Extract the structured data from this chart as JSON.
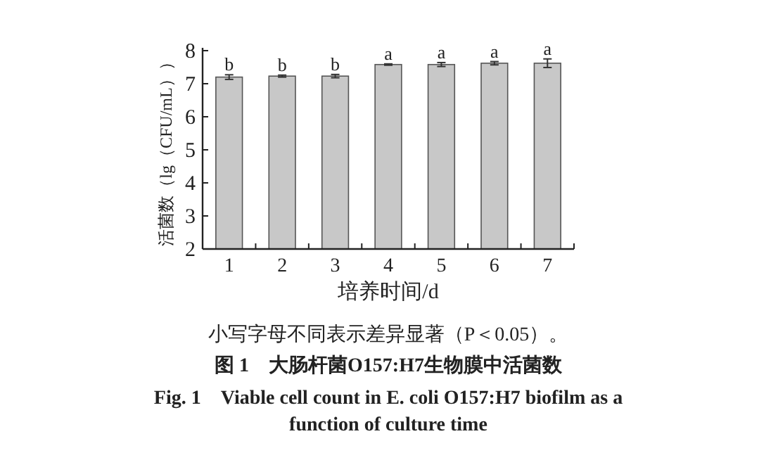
{
  "chart_data": {
    "type": "bar",
    "title": "图 1　大肠杆菌O157:H7生物膜中活菌数",
    "subtitle": "Fig. 1　Viable cell count in E. coli O157:H7 biofilm as a function of culture time",
    "xlabel": "培养时间/d",
    "ylabel": "活菌数（lg（CFU/mL））",
    "categories": [
      "1",
      "2",
      "3",
      "4",
      "5",
      "6",
      "7"
    ],
    "series": [
      {
        "color": "#c8c8c8",
        "values": [
          7.2,
          7.23,
          7.23,
          7.58,
          7.58,
          7.62,
          7.62
        ],
        "errors": [
          0.07,
          0.03,
          0.05,
          0.02,
          0.06,
          0.05,
          0.13
        ]
      }
    ],
    "ylim": [
      2,
      8
    ],
    "yticks": [
      2,
      3,
      4,
      5,
      6,
      7,
      8
    ],
    "grid": false,
    "annotations": [
      {
        "text": "b",
        "x": "1",
        "y": 7.27
      },
      {
        "text": "b",
        "x": "2",
        "y": 7.26
      },
      {
        "text": "b",
        "x": "3",
        "y": 7.28
      },
      {
        "text": "a",
        "x": "4",
        "y": 7.6
      },
      {
        "text": "a",
        "x": "5",
        "y": 7.64
      },
      {
        "text": "a",
        "x": "6",
        "y": 7.67
      },
      {
        "text": "a",
        "x": "7",
        "y": 7.75
      },
      "小写字母不同表示差异显著（P＜0.05）。"
    ]
  }
}
